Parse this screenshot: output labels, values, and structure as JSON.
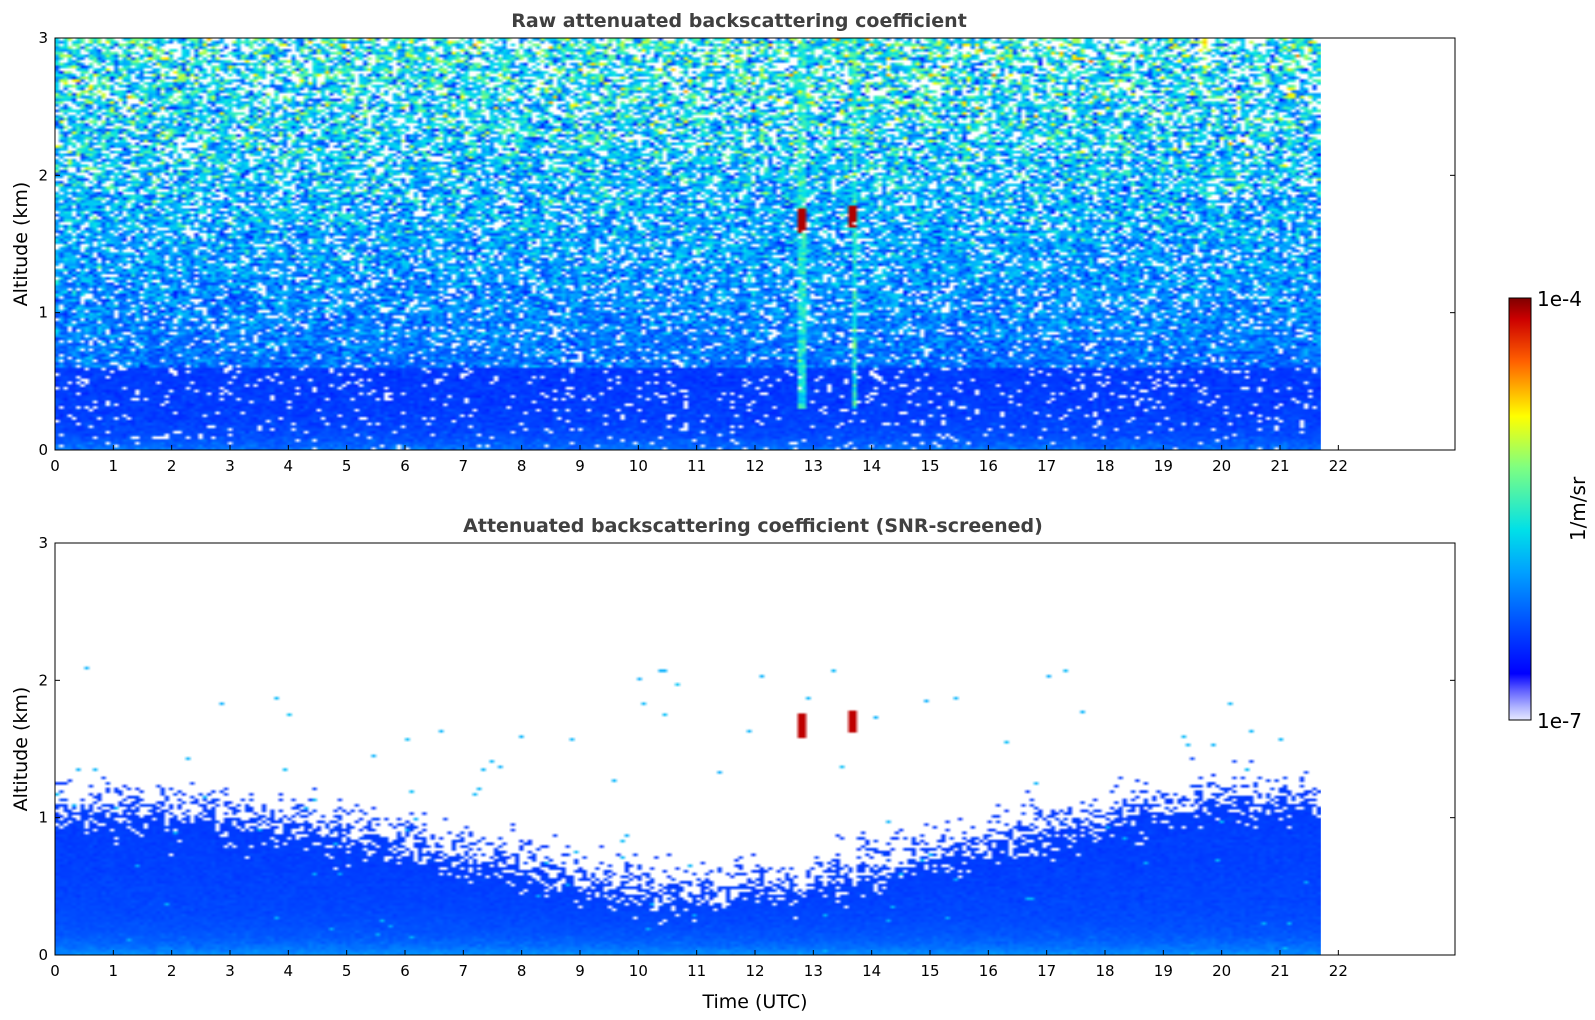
{
  "chart_data": [
    {
      "type": "heatmap",
      "title": "Raw attenuated backscattering coefficient",
      "xlabel": "",
      "ylabel": "Altitude (km)",
      "xlim": [
        0,
        24
      ],
      "ylim": [
        0,
        3
      ],
      "x_ticks": [
        "0",
        "1",
        "2",
        "3",
        "4",
        "5",
        "6",
        "7",
        "8",
        "9",
        "10",
        "11",
        "12",
        "13",
        "14",
        "15",
        "16",
        "17",
        "18",
        "19",
        "20",
        "21",
        "22"
      ],
      "y_ticks": [
        "0",
        "1",
        "2",
        "3"
      ],
      "data_end_time": 21.7,
      "screened": false,
      "features": [
        {
          "label": "cloud",
          "time": 12.8,
          "altitude": 1.68,
          "level": "1e-4"
        },
        {
          "label": "cloud",
          "time": 13.7,
          "altitude": 1.7,
          "level": "1e-4"
        }
      ]
    },
    {
      "type": "heatmap",
      "title": "Attenuated backscattering coefficient (SNR-screened)",
      "xlabel": "Time (UTC)",
      "ylabel": "Altitude (km)",
      "xlim": [
        0,
        24
      ],
      "ylim": [
        0,
        3
      ],
      "x_ticks": [
        "0",
        "1",
        "2",
        "3",
        "4",
        "5",
        "6",
        "7",
        "8",
        "9",
        "10",
        "11",
        "12",
        "13",
        "14",
        "15",
        "16",
        "17",
        "18",
        "19",
        "20",
        "21",
        "22"
      ],
      "y_ticks": [
        "0",
        "1",
        "2",
        "3"
      ],
      "data_end_time": 21.7,
      "screened": true,
      "features": [
        {
          "label": "cloud",
          "time": 12.8,
          "altitude": 1.68,
          "level": "1e-4"
        },
        {
          "label": "cloud",
          "time": 13.7,
          "altitude": 1.7,
          "level": "1e-4"
        }
      ]
    }
  ],
  "colorbar": {
    "min_label": "1e-7",
    "max_label": "1e-4",
    "unit_label": "1/m/sr",
    "colormap": "jet",
    "scale": "log"
  }
}
